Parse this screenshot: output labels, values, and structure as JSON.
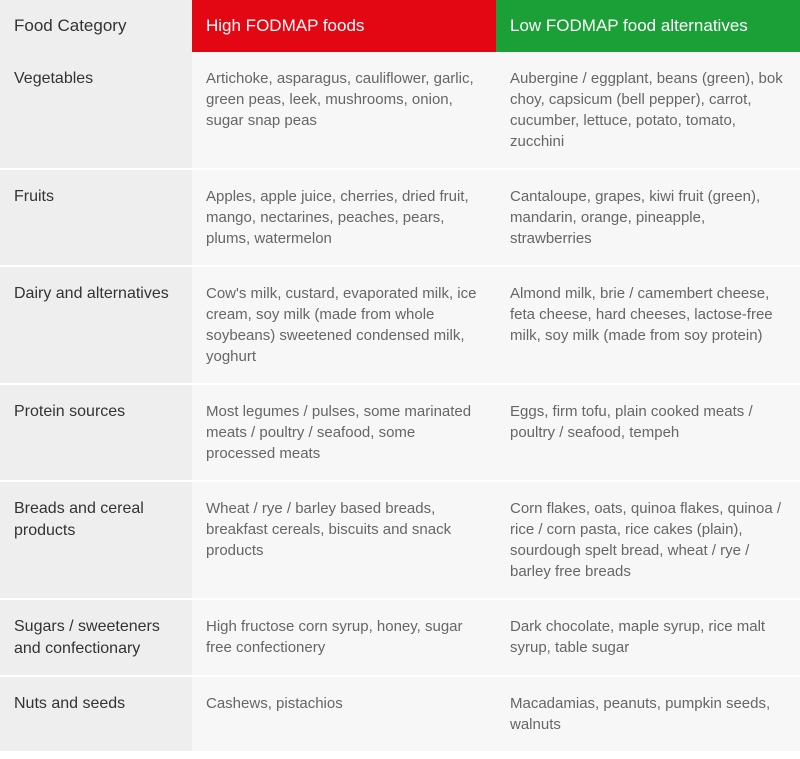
{
  "colors": {
    "header_high_bg": "#e30613",
    "header_low_bg": "#1aa037",
    "category_bg": "#eeeeee",
    "data_bg": "#f7f7f7",
    "header_text": "#ffffff",
    "category_text": "#333333",
    "data_text": "#666666"
  },
  "headers": {
    "category": "Food Category",
    "high": "High FODMAP foods",
    "low": "Low FODMAP food alternatives"
  },
  "rows": [
    {
      "category": "Vegetables",
      "high": "Artichoke, asparagus, cauliflower, garlic, green peas, leek, mushrooms, onion, sugar snap peas",
      "low": "Aubergine / eggplant, beans (green), bok choy, capsicum (bell pepper), carrot, cucumber, lettuce, potato, tomato, zucchini"
    },
    {
      "category": "Fruits",
      "high": "Apples, apple juice, cherries, dried fruit, mango, nectarines, peaches, pears, plums, watermelon",
      "low": "Cantaloupe, grapes, kiwi fruit (green), mandarin, orange, pineapple, strawberries"
    },
    {
      "category": "Dairy and alternatives",
      "high": "Cow's milk, custard, evaporated milk, ice cream, soy milk (made from whole soybeans) sweetened condensed milk, yoghurt",
      "low": "Almond milk, brie / camembert cheese, feta cheese, hard cheeses, lactose-free milk, soy milk (made from soy protein)"
    },
    {
      "category": "Protein sources",
      "high": "Most legumes / pulses, some marinated meats / poultry / seafood, some processed meats",
      "low": "Eggs, firm tofu, plain cooked meats / poultry / seafood, tempeh"
    },
    {
      "category": "Breads and cereal products",
      "high": "Wheat / rye / barley based breads, breakfast cereals, biscuits and snack products",
      "low": "Corn flakes, oats, quinoa flakes, quinoa / rice / corn pasta, rice cakes (plain), sourdough spelt bread, wheat / rye / barley free breads"
    },
    {
      "category": "Sugars / sweeteners and confectionary",
      "high": "High fructose corn syrup, honey, sugar free confectionery",
      "low": "Dark chocolate, maple syrup, rice malt syrup, table sugar"
    },
    {
      "category": "Nuts and seeds",
      "high": "Cashews, pistachios",
      "low": "Macadamias, peanuts, pumpkin seeds, walnuts"
    }
  ]
}
